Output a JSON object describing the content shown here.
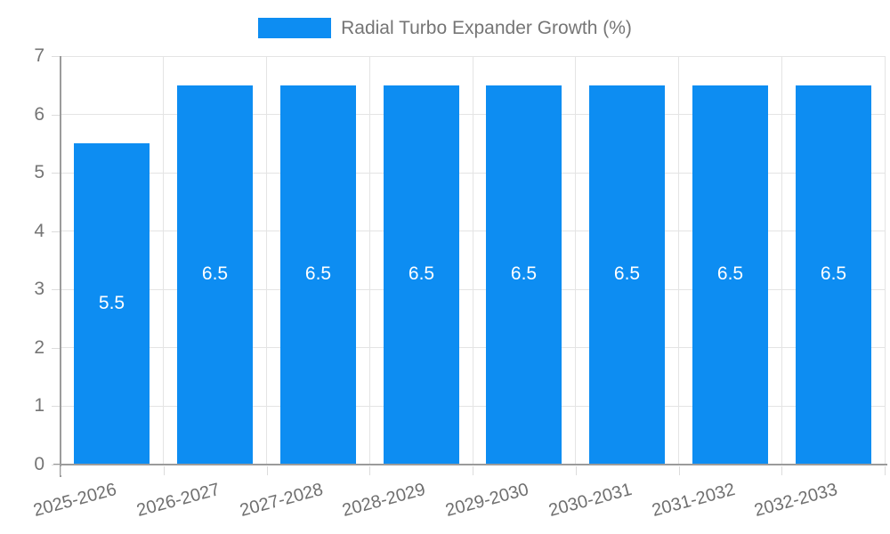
{
  "chart_data": {
    "type": "bar",
    "title": "Radial Turbo Expander Growth (%)",
    "legend": {
      "position": "top",
      "entries": [
        "Radial Turbo Expander Growth (%)"
      ]
    },
    "categories": [
      "2025-2026",
      "2026-2027",
      "2027-2028",
      "2028-2029",
      "2029-2030",
      "2030-2031",
      "2031-2032",
      "2032-2033"
    ],
    "series": [
      {
        "name": "Radial Turbo Expander Growth (%)",
        "values": [
          5.5,
          6.5,
          6.5,
          6.5,
          6.5,
          6.5,
          6.5,
          6.5
        ]
      }
    ],
    "value_labels": [
      "5.5",
      "6.5",
      "6.5",
      "6.5",
      "6.5",
      "6.5",
      "6.5",
      "6.5"
    ],
    "xlabel": "",
    "ylabel": "",
    "ylim": [
      0,
      7
    ],
    "yticks": [
      0,
      1,
      2,
      3,
      4,
      5,
      6,
      7
    ],
    "grid": true,
    "colors": {
      "bar": "#0d8df2",
      "value_label": "#ffffff",
      "grid_line": "#e4e4e4",
      "axis_line": "#9b9b9b",
      "tick_label": "#757575"
    }
  }
}
